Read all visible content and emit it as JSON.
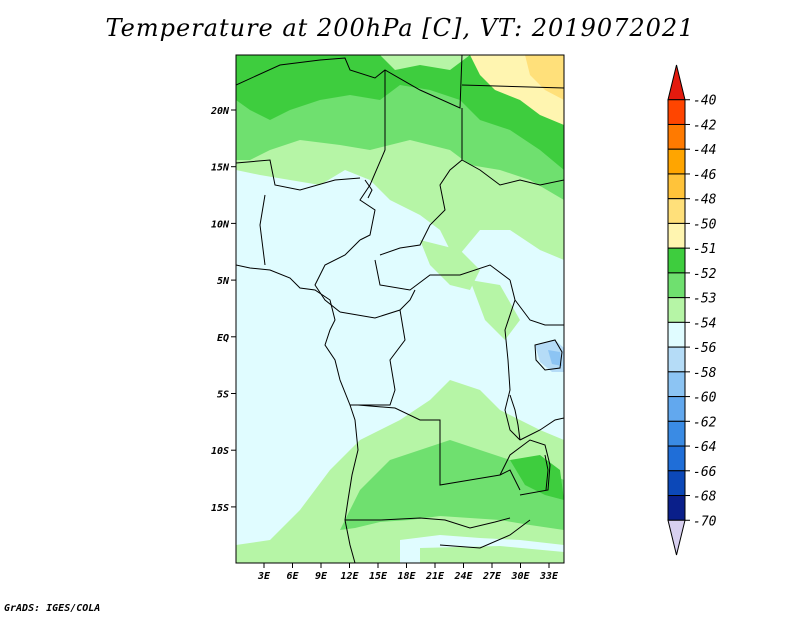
{
  "title": "Temperature at 200hPa [C], VT: 2019072021",
  "footer": "GrADS: IGES/COLA",
  "lon_ticks": [
    "3E",
    "6E",
    "9E",
    "12E",
    "15E",
    "18E",
    "21E",
    "24E",
    "27E",
    "30E",
    "33E"
  ],
  "lat_ticks": [
    "20N",
    "15N",
    "10N",
    "5N",
    "EQ",
    "5S",
    "10S",
    "15S"
  ],
  "colorbar": {
    "labels": [
      "-40",
      "-42",
      "-44",
      "-46",
      "-48",
      "-50",
      "-51",
      "-52",
      "-53",
      "-54",
      "-56",
      "-58",
      "-60",
      "-62",
      "-64",
      "-66",
      "-68",
      "-70"
    ],
    "colors": [
      "#e31a0e",
      "#ff4500",
      "#ff7a00",
      "#ffa500",
      "#ffc33a",
      "#ffe07a",
      "#fff5b0",
      "#3ecd3e",
      "#6fe06f",
      "#b6f5a6",
      "#e0fcff",
      "#b5dcf7",
      "#8cc4f3",
      "#62a8ee",
      "#3a8be4",
      "#1f6ed8",
      "#0c48b8",
      "#0a1f8a",
      "#d8d0f0"
    ]
  },
  "field": {
    "variable": "Temperature",
    "level": "200hPa",
    "units": "C",
    "domain": {
      "lon": [
        0,
        34
      ],
      "lat": [
        -20,
        24
      ]
    },
    "dominant_class": "-54",
    "regions": [
      {
        "area": "northern Sahel / Sudan (north)",
        "value": "-52"
      },
      {
        "area": "northeast corner (Egypt/Sudan border)",
        "value": "-50"
      },
      {
        "area": "south-central Africa (Angola/Zambia)",
        "value": "-53"
      },
      {
        "area": "Lake Victoria vicinity",
        "value": "-56"
      }
    ]
  },
  "colors": {
    "land_outline": "#000000",
    "background": "#ffffff"
  }
}
